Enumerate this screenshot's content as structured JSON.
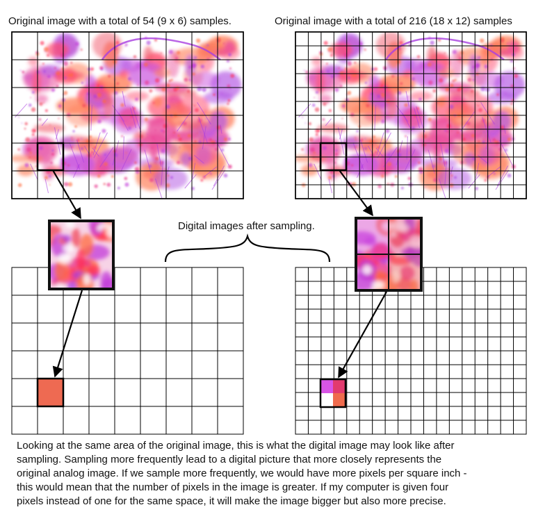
{
  "titles": {
    "left": "Original image with a total of 54 (9 x 6) samples.",
    "right": "Original image with a total of 216 (18 x 12) samples"
  },
  "middle_label": "Digital images after sampling.",
  "caption_lines": [
    "Looking at the same area of the original image, this is what the digital image may look like after",
    "sampling.  Sampling more frequently lead to a digital picture that more closely represents the",
    "original analog image.  If we sample more frequently, we would have more pixels per square inch -",
    "this would mean that the number of pixels in the image is greater.  If my computer is given four",
    "pixels instead of one for the same space, it will make the image bigger but also more precise."
  ],
  "grids": {
    "left": {
      "columns": 9,
      "rows": 6
    },
    "right": {
      "columns": 18,
      "rows": 12
    }
  },
  "colors": {
    "sampled_pixel_left": "#ee6a52",
    "sampled_pixels_right": [
      "#d855e6",
      "#e23a6e",
      "#ffffff",
      "#ef6b4d"
    ],
    "splash_palette": [
      "#ff2d55",
      "#f0465a",
      "#c23bd8",
      "#a93fe0",
      "#ff6a3d",
      "#e8338c"
    ]
  }
}
